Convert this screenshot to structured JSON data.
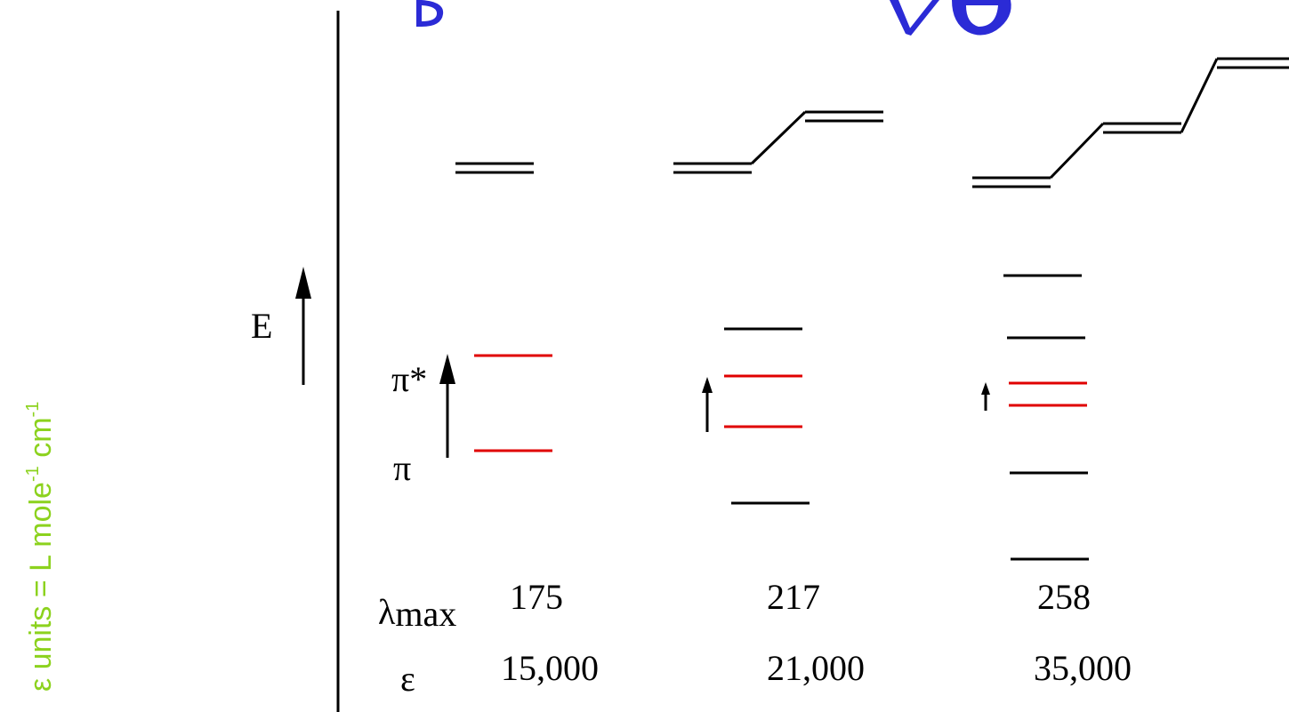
{
  "side_note": {
    "prefix": "ε units = L mole",
    "sup1": "-1",
    "mid": " cm",
    "sup2": "-1",
    "color": "#8cd21e"
  },
  "energy_label": "E",
  "orbital_labels": {
    "pi_star": "π*",
    "pi": "π"
  },
  "row_labels": {
    "lambda_symbol": "λ",
    "lambda_subscript": "max",
    "epsilon_symbol": "ε"
  },
  "columns": [
    {
      "lambda_max": "175",
      "epsilon": "15,000"
    },
    {
      "lambda_max": "217",
      "epsilon": "21,000"
    },
    {
      "lambda_max": "258",
      "epsilon": "35,000"
    }
  ],
  "colors": {
    "homo_lumo": "#e00000",
    "other_orbitals": "#000000",
    "title": "#2b2bd6"
  }
}
